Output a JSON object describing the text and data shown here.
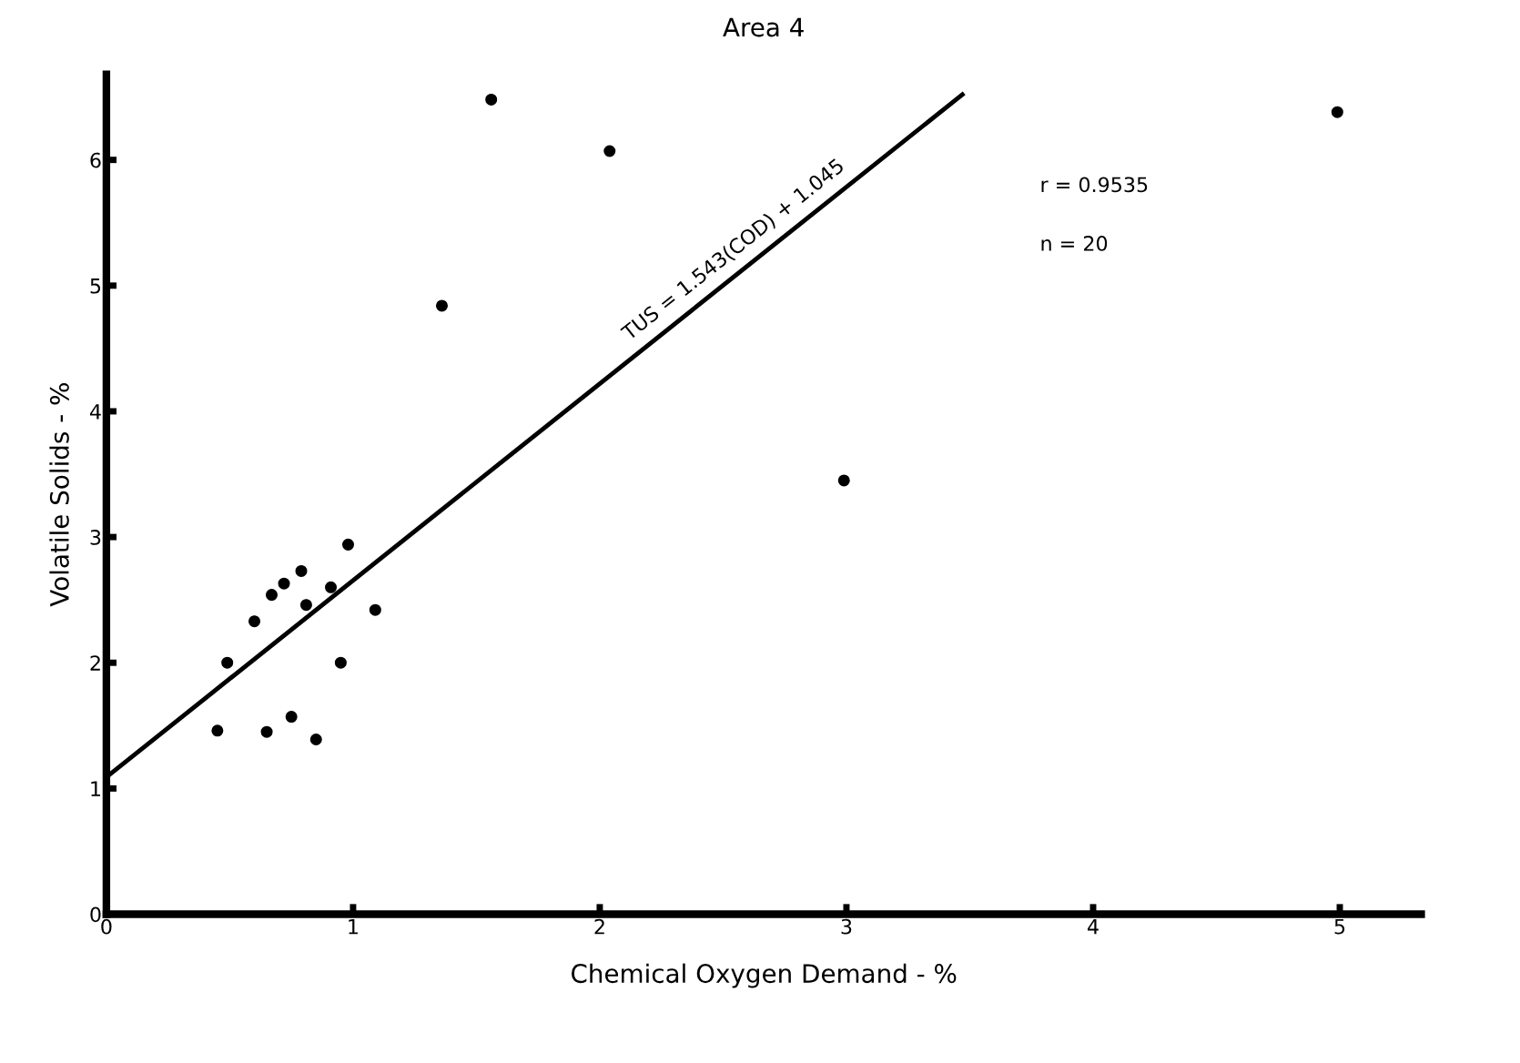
{
  "chart_data": {
    "type": "scatter",
    "title": "Area 4",
    "xlabel": "Chemical Oxygen Demand - %",
    "ylabel": "Volatile Solids - %",
    "xlim": [
      0,
      5.33
    ],
    "ylim": [
      0,
      6.68
    ],
    "xticks": [
      0,
      1,
      2,
      3,
      4,
      5
    ],
    "yticks": [
      0,
      1,
      2,
      3,
      4,
      5,
      6
    ],
    "grid": false,
    "legend": false,
    "series": [
      {
        "marker": "circle",
        "color": "#000000",
        "x": [
          0.49,
          0.45,
          0.6,
          0.65,
          0.67,
          0.72,
          0.75,
          0.79,
          0.81,
          0.85,
          0.91,
          0.95,
          0.98,
          1.09,
          1.36,
          1.56,
          2.04,
          2.99,
          4.99
        ],
        "values": [
          2.0,
          1.46,
          2.33,
          1.45,
          2.54,
          2.63,
          1.57,
          2.73,
          2.46,
          1.39,
          2.6,
          2.0,
          2.94,
          2.42,
          4.84,
          6.48,
          6.07,
          3.45,
          6.38
        ]
      },
      {
        "type": "line",
        "marker": "none",
        "color": "#000000",
        "line_style": "solid",
        "x": [
          0,
          3.47
        ],
        "values": [
          1.09,
          6.52
        ]
      }
    ],
    "annotations": [
      {
        "text": "TUS = 1.543(COD) + 1.045",
        "x": 2.6,
        "y": 5.16
      },
      "r = 0.9535",
      "n = 20"
    ]
  }
}
